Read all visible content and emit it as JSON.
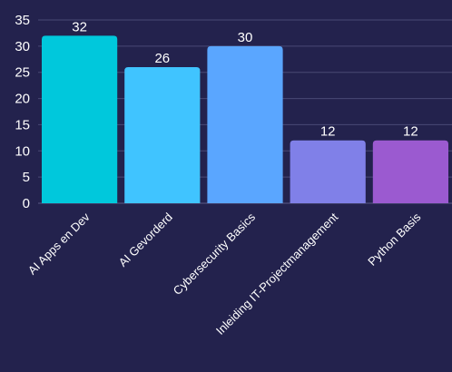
{
  "chart_data": {
    "type": "bar",
    "categories": [
      "AI Apps en Dev",
      "AI Gevorderd",
      "Cybersecurity Basics",
      "Inleiding IT-Projectmanagement",
      "Python Basis"
    ],
    "values": [
      32,
      26,
      30,
      12,
      12
    ],
    "colors": [
      "#00c8dc",
      "#40c4ff",
      "#5aa6ff",
      "#8080e8",
      "#9b5ad0"
    ],
    "ylim": [
      0,
      35
    ],
    "yticks": [
      0,
      5,
      10,
      15,
      20,
      25,
      30,
      35
    ],
    "grid": true,
    "title": "",
    "xlabel": "",
    "ylabel": ""
  },
  "theme": {
    "background": "#23224d",
    "grid_color": "#4a4975",
    "text_color": "#ffffff"
  }
}
